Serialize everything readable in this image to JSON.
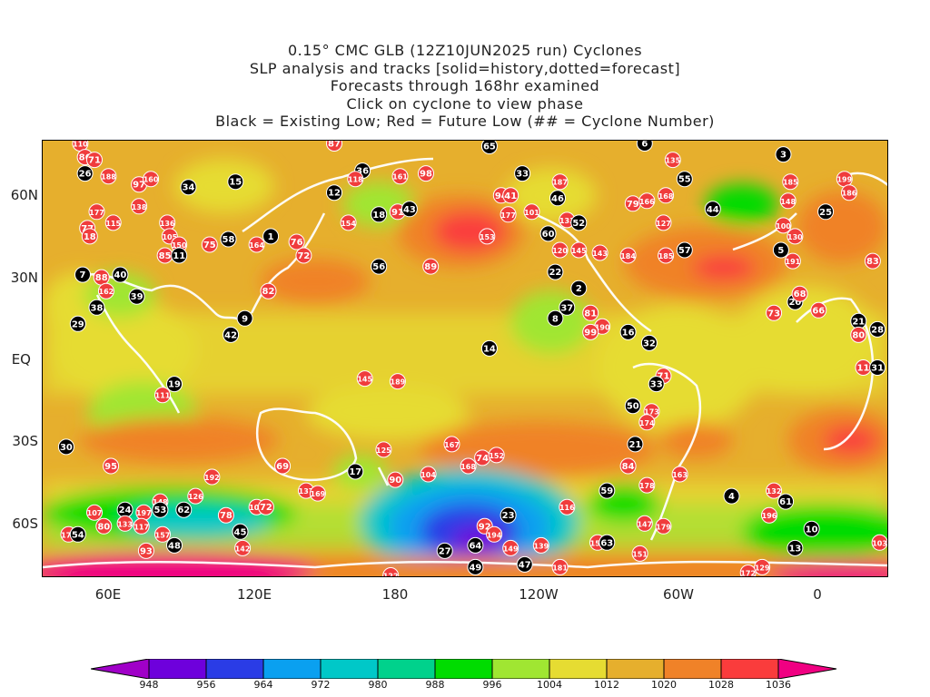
{
  "title": {
    "line1": "0.15° CMC GLB (12Z10JUN2025 run) Cyclones",
    "line2": "SLP analysis and tracks [solid=history,dotted=forecast]",
    "line3": "Forecasts through 168hr examined",
    "line4": "Click on cyclone to view phase",
    "line5": "Black = Existing Low; Red = Future Low (## = Cyclone Number)"
  },
  "axes": {
    "lat_labels": [
      "60N",
      "30N",
      "EQ",
      "30S",
      "60S"
    ],
    "lon_labels": [
      "60E",
      "120E",
      "180",
      "120W",
      "60W",
      "0"
    ]
  },
  "colorbar": {
    "levels": [
      "948",
      "956",
      "964",
      "972",
      "980",
      "988",
      "996",
      "1004",
      "1012",
      "1020",
      "1028",
      "1036"
    ],
    "colors": [
      "#a000c8",
      "#6e00dc",
      "#2a3ce6",
      "#0aa0f0",
      "#00c8c8",
      "#00d28c",
      "#00dc00",
      "#a0e632",
      "#e6dc32",
      "#e6af2d",
      "#f08228",
      "#fa3c3c",
      "#f00082"
    ],
    "unit_note": ""
  },
  "markers": [
    {
      "id": "110",
      "t": "red",
      "lon": 49,
      "lat": 80
    },
    {
      "id": "86",
      "t": "red",
      "lon": 51,
      "lat": 75
    },
    {
      "id": "71",
      "t": "red",
      "lon": 55,
      "lat": 74
    },
    {
      "id": "26",
      "t": "black",
      "lon": 51,
      "lat": 69
    },
    {
      "id": "188",
      "t": "red",
      "lon": 61,
      "lat": 68
    },
    {
      "id": "97",
      "t": "red",
      "lon": 74,
      "lat": 65
    },
    {
      "id": "160",
      "t": "red",
      "lon": 79,
      "lat": 67
    },
    {
      "id": "34",
      "t": "black",
      "lon": 95,
      "lat": 64
    },
    {
      "id": "15",
      "t": "black",
      "lon": 115,
      "lat": 66
    },
    {
      "id": "87",
      "t": "red",
      "lon": 157,
      "lat": 80
    },
    {
      "id": "36",
      "t": "black",
      "lon": 169,
      "lat": 70
    },
    {
      "id": "118",
      "t": "red",
      "lon": 166,
      "lat": 67
    },
    {
      "id": "12",
      "t": "black",
      "lon": 157,
      "lat": 62
    },
    {
      "id": "161",
      "t": "red",
      "lon": 185,
      "lat": 68
    },
    {
      "id": "98",
      "t": "red",
      "lon": 196,
      "lat": 69
    },
    {
      "id": "65",
      "t": "black",
      "lon": 223,
      "lat": 79
    },
    {
      "id": "33",
      "t": "black",
      "lon": 237,
      "lat": 69
    },
    {
      "id": "6",
      "t": "black",
      "lon": 289,
      "lat": 80
    },
    {
      "id": "135",
      "t": "red",
      "lon": 301,
      "lat": 74
    },
    {
      "id": "55",
      "t": "black",
      "lon": 306,
      "lat": 67
    },
    {
      "id": "3",
      "t": "black",
      "lon": 348,
      "lat": 76
    },
    {
      "id": "199",
      "t": "red",
      "lon": 374,
      "lat": 67
    },
    {
      "id": "186",
      "t": "red",
      "lon": 376,
      "lat": 62
    },
    {
      "id": "177",
      "t": "red",
      "lon": 56,
      "lat": 55
    },
    {
      "id": "138",
      "t": "red",
      "lon": 74,
      "lat": 57
    },
    {
      "id": "77",
      "t": "red",
      "lon": 52,
      "lat": 49
    },
    {
      "id": "18",
      "t": "red",
      "lon": 53,
      "lat": 46
    },
    {
      "id": "115",
      "t": "red",
      "lon": 63,
      "lat": 51
    },
    {
      "id": "136",
      "t": "red",
      "lon": 86,
      "lat": 51
    },
    {
      "id": "105",
      "t": "red",
      "lon": 87,
      "lat": 46
    },
    {
      "id": "150",
      "t": "red",
      "lon": 91,
      "lat": 43
    },
    {
      "id": "85",
      "t": "red",
      "lon": 85,
      "lat": 39
    },
    {
      "id": "11",
      "t": "black",
      "lon": 91,
      "lat": 39
    },
    {
      "id": "75",
      "t": "red",
      "lon": 104,
      "lat": 43
    },
    {
      "id": "58",
      "t": "black",
      "lon": 112,
      "lat": 45
    },
    {
      "id": "164",
      "t": "red",
      "lon": 124,
      "lat": 43
    },
    {
      "id": "1",
      "t": "black",
      "lon": 130,
      "lat": 46
    },
    {
      "id": "76",
      "t": "red",
      "lon": 141,
      "lat": 44
    },
    {
      "id": "72",
      "t": "red",
      "lon": 144,
      "lat": 39
    },
    {
      "id": "18",
      "t": "black",
      "lon": 176,
      "lat": 54
    },
    {
      "id": "154",
      "t": "red",
      "lon": 163,
      "lat": 51
    },
    {
      "id": "91",
      "t": "red",
      "lon": 184,
      "lat": 55
    },
    {
      "id": "43",
      "t": "black",
      "lon": 189,
      "lat": 56
    },
    {
      "id": "94",
      "t": "red",
      "lon": 228,
      "lat": 61
    },
    {
      "id": "41",
      "t": "red",
      "lon": 232,
      "lat": 61
    },
    {
      "id": "177",
      "t": "red",
      "lon": 231,
      "lat": 54
    },
    {
      "id": "153",
      "t": "red",
      "lon": 222,
      "lat": 46
    },
    {
      "id": "101",
      "t": "red",
      "lon": 241,
      "lat": 55
    },
    {
      "id": "187",
      "t": "red",
      "lon": 253,
      "lat": 66
    },
    {
      "id": "46",
      "t": "black",
      "lon": 252,
      "lat": 60
    },
    {
      "id": "133",
      "t": "red",
      "lon": 256,
      "lat": 52
    },
    {
      "id": "52",
      "t": "black",
      "lon": 261,
      "lat": 51
    },
    {
      "id": "60",
      "t": "black",
      "lon": 248,
      "lat": 47
    },
    {
      "id": "120",
      "t": "red",
      "lon": 253,
      "lat": 41
    },
    {
      "id": "145",
      "t": "red",
      "lon": 261,
      "lat": 41
    },
    {
      "id": "143",
      "t": "red",
      "lon": 270,
      "lat": 40
    },
    {
      "id": "184",
      "t": "red",
      "lon": 282,
      "lat": 39
    },
    {
      "id": "79",
      "t": "red",
      "lon": 284,
      "lat": 58
    },
    {
      "id": "166",
      "t": "red",
      "lon": 290,
      "lat": 59
    },
    {
      "id": "168",
      "t": "red",
      "lon": 298,
      "lat": 61
    },
    {
      "id": "44",
      "t": "black",
      "lon": 318,
      "lat": 56
    },
    {
      "id": "127",
      "t": "red",
      "lon": 297,
      "lat": 51
    },
    {
      "id": "185",
      "t": "red",
      "lon": 298,
      "lat": 39
    },
    {
      "id": "57",
      "t": "black",
      "lon": 306,
      "lat": 41
    },
    {
      "id": "185",
      "t": "red",
      "lon": 351,
      "lat": 66
    },
    {
      "id": "148",
      "t": "red",
      "lon": 350,
      "lat": 59
    },
    {
      "id": "25",
      "t": "black",
      "lon": 366,
      "lat": 55
    },
    {
      "id": "100",
      "t": "red",
      "lon": 348,
      "lat": 50
    },
    {
      "id": "130",
      "t": "red",
      "lon": 353,
      "lat": 46
    },
    {
      "id": "5",
      "t": "black",
      "lon": 347,
      "lat": 41
    },
    {
      "id": "191",
      "t": "red",
      "lon": 352,
      "lat": 37
    },
    {
      "id": "83",
      "t": "red",
      "lon": 386,
      "lat": 37
    },
    {
      "id": "7",
      "t": "black",
      "lon": 50,
      "lat": 32
    },
    {
      "id": "88",
      "t": "red",
      "lon": 58,
      "lat": 31
    },
    {
      "id": "40",
      "t": "black",
      "lon": 66,
      "lat": 32
    },
    {
      "id": "162",
      "t": "red",
      "lon": 60,
      "lat": 26
    },
    {
      "id": "39",
      "t": "black",
      "lon": 73,
      "lat": 24
    },
    {
      "id": "38",
      "t": "black",
      "lon": 56,
      "lat": 20
    },
    {
      "id": "82",
      "t": "red",
      "lon": 129,
      "lat": 26
    },
    {
      "id": "56",
      "t": "black",
      "lon": 176,
      "lat": 35
    },
    {
      "id": "89",
      "t": "red",
      "lon": 198,
      "lat": 35
    },
    {
      "id": "22",
      "t": "black",
      "lon": 251,
      "lat": 33
    },
    {
      "id": "2",
      "t": "black",
      "lon": 261,
      "lat": 27
    },
    {
      "id": "37",
      "t": "black",
      "lon": 256,
      "lat": 20
    },
    {
      "id": "8",
      "t": "black",
      "lon": 251,
      "lat": 16
    },
    {
      "id": "81",
      "t": "red",
      "lon": 266,
      "lat": 18
    },
    {
      "id": "190",
      "t": "red",
      "lon": 271,
      "lat": 13
    },
    {
      "id": "99",
      "t": "red",
      "lon": 266,
      "lat": 11
    },
    {
      "id": "16",
      "t": "black",
      "lon": 282,
      "lat": 11
    },
    {
      "id": "32",
      "t": "black",
      "lon": 291,
      "lat": 7
    },
    {
      "id": "73",
      "t": "red",
      "lon": 344,
      "lat": 18
    },
    {
      "id": "20",
      "t": "black",
      "lon": 353,
      "lat": 22
    },
    {
      "id": "68",
      "t": "red",
      "lon": 355,
      "lat": 25
    },
    {
      "id": "66",
      "t": "red",
      "lon": 363,
      "lat": 19
    },
    {
      "id": "21",
      "t": "black",
      "lon": 380,
      "lat": 15
    },
    {
      "id": "28",
      "t": "black",
      "lon": 388,
      "lat": 12
    },
    {
      "id": "80",
      "t": "red",
      "lon": 380,
      "lat": 10
    },
    {
      "id": "29",
      "t": "black",
      "lon": 48,
      "lat": 14
    },
    {
      "id": "9",
      "t": "black",
      "lon": 119,
      "lat": 16
    },
    {
      "id": "42",
      "t": "black",
      "lon": 113,
      "lat": 10
    },
    {
      "id": "14",
      "t": "black",
      "lon": 223,
      "lat": 5
    },
    {
      "id": "19",
      "t": "black",
      "lon": 89,
      "lat": -8
    },
    {
      "id": "111",
      "t": "red",
      "lon": 84,
      "lat": -12
    },
    {
      "id": "145",
      "t": "red",
      "lon": 170,
      "lat": -6
    },
    {
      "id": "189",
      "t": "red",
      "lon": 184,
      "lat": -7
    },
    {
      "id": "71",
      "t": "red",
      "lon": 297,
      "lat": -5
    },
    {
      "id": "33",
      "t": "black",
      "lon": 294,
      "lat": -8
    },
    {
      "id": "11",
      "t": "red",
      "lon": 382,
      "lat": -2
    },
    {
      "id": "31",
      "t": "black",
      "lon": 388,
      "lat": -2
    },
    {
      "id": "50",
      "t": "black",
      "lon": 284,
      "lat": -16
    },
    {
      "id": "173",
      "t": "red",
      "lon": 292,
      "lat": -18
    },
    {
      "id": "174",
      "t": "red",
      "lon": 290,
      "lat": -22
    },
    {
      "id": "21",
      "t": "black",
      "lon": 285,
      "lat": -30
    },
    {
      "id": "30",
      "t": "black",
      "lon": 43,
      "lat": -31
    },
    {
      "id": "125",
      "t": "red",
      "lon": 178,
      "lat": -32
    },
    {
      "id": "167",
      "t": "red",
      "lon": 207,
      "lat": -30
    },
    {
      "id": "95",
      "t": "red",
      "lon": 62,
      "lat": -38
    },
    {
      "id": "69",
      "t": "red",
      "lon": 135,
      "lat": -38
    },
    {
      "id": "17",
      "t": "black",
      "lon": 166,
      "lat": -40
    },
    {
      "id": "192",
      "t": "red",
      "lon": 105,
      "lat": -42
    },
    {
      "id": "90",
      "t": "red",
      "lon": 183,
      "lat": -43
    },
    {
      "id": "104",
      "t": "red",
      "lon": 197,
      "lat": -41
    },
    {
      "id": "168",
      "t": "red",
      "lon": 214,
      "lat": -38
    },
    {
      "id": "74",
      "t": "red",
      "lon": 220,
      "lat": -35
    },
    {
      "id": "152",
      "t": "red",
      "lon": 226,
      "lat": -34
    },
    {
      "id": "84",
      "t": "red",
      "lon": 282,
      "lat": -38
    },
    {
      "id": "178",
      "t": "red",
      "lon": 290,
      "lat": -45
    },
    {
      "id": "163",
      "t": "red",
      "lon": 304,
      "lat": -41
    },
    {
      "id": "59",
      "t": "black",
      "lon": 273,
      "lat": -47
    },
    {
      "id": "4",
      "t": "black",
      "lon": 326,
      "lat": -49
    },
    {
      "id": "132",
      "t": "red",
      "lon": 344,
      "lat": -47
    },
    {
      "id": "61",
      "t": "black",
      "lon": 349,
      "lat": -51
    },
    {
      "id": "126",
      "t": "red",
      "lon": 98,
      "lat": -49
    },
    {
      "id": "137",
      "t": "red",
      "lon": 145,
      "lat": -47
    },
    {
      "id": "169",
      "t": "red",
      "lon": 150,
      "lat": -48
    },
    {
      "id": "101",
      "t": "red",
      "lon": 124,
      "lat": -53
    },
    {
      "id": "72",
      "t": "red",
      "lon": 128,
      "lat": -53
    },
    {
      "id": "148",
      "t": "red",
      "lon": 83,
      "lat": -51
    },
    {
      "id": "107",
      "t": "red",
      "lon": 55,
      "lat": -55
    },
    {
      "id": "24",
      "t": "black",
      "lon": 68,
      "lat": -54
    },
    {
      "id": "197",
      "t": "red",
      "lon": 76,
      "lat": -55
    },
    {
      "id": "53",
      "t": "black",
      "lon": 83,
      "lat": -54
    },
    {
      "id": "62",
      "t": "black",
      "lon": 93,
      "lat": -54
    },
    {
      "id": "78",
      "t": "red",
      "lon": 111,
      "lat": -56
    },
    {
      "id": "116",
      "t": "red",
      "lon": 256,
      "lat": -53
    },
    {
      "id": "23",
      "t": "black",
      "lon": 231,
      "lat": -56
    },
    {
      "id": "92",
      "t": "red",
      "lon": 221,
      "lat": -60
    },
    {
      "id": "196",
      "t": "red",
      "lon": 342,
      "lat": -56
    },
    {
      "id": "10",
      "t": "black",
      "lon": 360,
      "lat": -61
    },
    {
      "id": "175",
      "t": "red",
      "lon": 44,
      "lat": -63
    },
    {
      "id": "54",
      "t": "black",
      "lon": 48,
      "lat": -63
    },
    {
      "id": "80",
      "t": "red",
      "lon": 59,
      "lat": -60
    },
    {
      "id": "133",
      "t": "red",
      "lon": 68,
      "lat": -59
    },
    {
      "id": "117",
      "t": "red",
      "lon": 75,
      "lat": -60
    },
    {
      "id": "157",
      "t": "red",
      "lon": 84,
      "lat": -63
    },
    {
      "id": "45",
      "t": "black",
      "lon": 117,
      "lat": -62
    },
    {
      "id": "142",
      "t": "red",
      "lon": 118,
      "lat": -68
    },
    {
      "id": "48",
      "t": "black",
      "lon": 89,
      "lat": -67
    },
    {
      "id": "93",
      "t": "red",
      "lon": 77,
      "lat": -69
    },
    {
      "id": "147",
      "t": "red",
      "lon": 289,
      "lat": -59
    },
    {
      "id": "179",
      "t": "red",
      "lon": 297,
      "lat": -60
    },
    {
      "id": "194",
      "t": "red",
      "lon": 225,
      "lat": -63
    },
    {
      "id": "64",
      "t": "black",
      "lon": 217,
      "lat": -67
    },
    {
      "id": "27",
      "t": "black",
      "lon": 204,
      "lat": -69
    },
    {
      "id": "149",
      "t": "red",
      "lon": 232,
      "lat": -68
    },
    {
      "id": "139",
      "t": "red",
      "lon": 245,
      "lat": -67
    },
    {
      "id": "156",
      "t": "red",
      "lon": 269,
      "lat": -66
    },
    {
      "id": "63",
      "t": "black",
      "lon": 273,
      "lat": -66
    },
    {
      "id": "151",
      "t": "red",
      "lon": 287,
      "lat": -70
    },
    {
      "id": "13",
      "t": "black",
      "lon": 353,
      "lat": -68
    },
    {
      "id": "103",
      "t": "red",
      "lon": 389,
      "lat": -66
    },
    {
      "id": "49",
      "t": "black",
      "lon": 217,
      "lat": -75
    },
    {
      "id": "47",
      "t": "black",
      "lon": 238,
      "lat": -74
    },
    {
      "id": "181",
      "t": "red",
      "lon": 253,
      "lat": -75
    },
    {
      "id": "122",
      "t": "red",
      "lon": 181,
      "lat": -78
    },
    {
      "id": "172",
      "t": "red",
      "lon": 333,
      "lat": -77
    },
    {
      "id": "129",
      "t": "red",
      "lon": 339,
      "lat": -75
    }
  ]
}
